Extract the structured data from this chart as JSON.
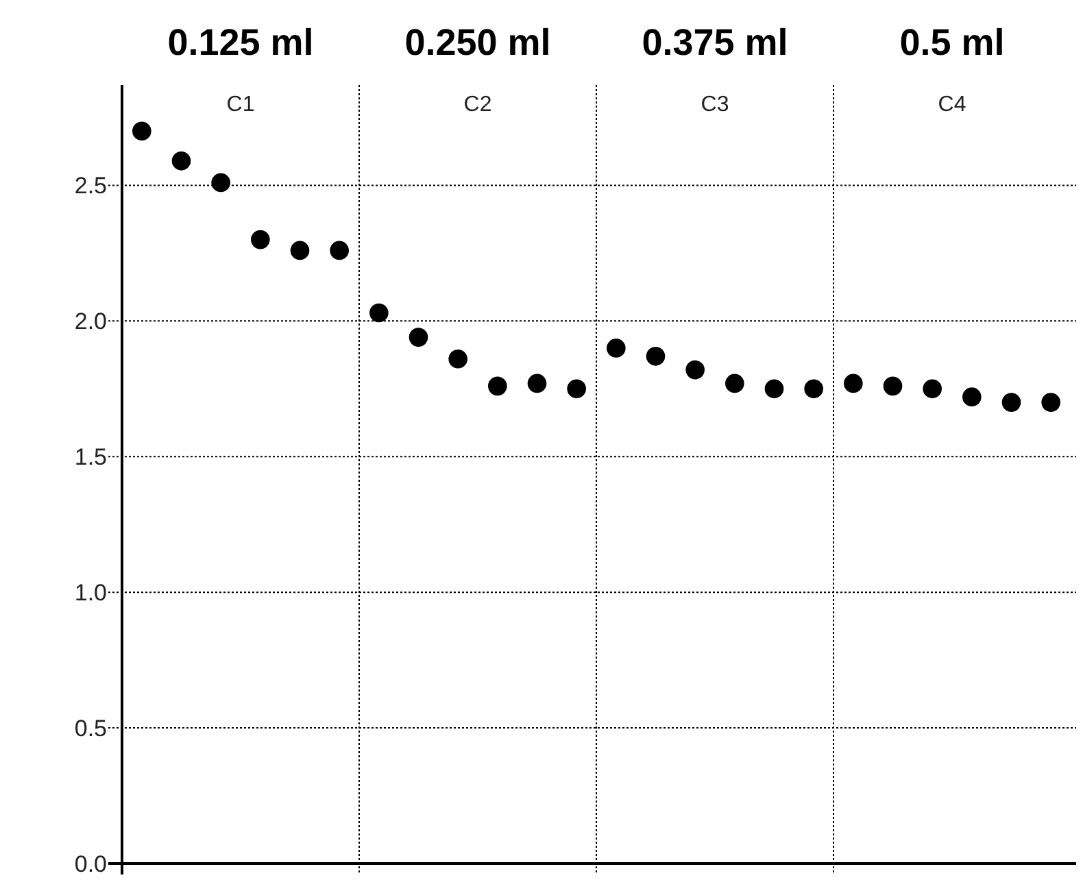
{
  "chart_data": {
    "type": "scatter",
    "categories": [
      null,
      null,
      null,
      null,
      null,
      null,
      null,
      null,
      null,
      null,
      null,
      null,
      null,
      null,
      null,
      null,
      null,
      null,
      null,
      null,
      null,
      null,
      null,
      null
    ],
    "series": [
      {
        "color": "#000000",
        "values": [
          2.7,
          2.59,
          2.51,
          2.3,
          2.26,
          2.26,
          2.03,
          1.94,
          1.86,
          1.76,
          1.77,
          1.75,
          1.9,
          1.87,
          1.82,
          1.77,
          1.75,
          1.75,
          1.77,
          1.76,
          1.75,
          1.72,
          1.7,
          1.7
        ]
      }
    ],
    "ylim": [
      0,
      2.87
    ],
    "yticks": [
      {
        "value": 0,
        "label": "0.0"
      },
      {
        "value": 0.5,
        "label": "0.5"
      },
      {
        "value": 1,
        "label": "1.0"
      },
      {
        "value": 1.5,
        "label": "1.5"
      },
      {
        "value": 2,
        "label": "2.0"
      },
      {
        "value": 2.5,
        "label": "2.5"
      }
    ],
    "annotations": [
      "0.125 ml",
      "0.250 ml",
      "0.375 ml",
      "0.5 ml",
      "C1",
      "C2",
      "C3",
      "C4"
    ],
    "grid": true,
    "tick_labels": "y",
    "marker": "circle"
  }
}
